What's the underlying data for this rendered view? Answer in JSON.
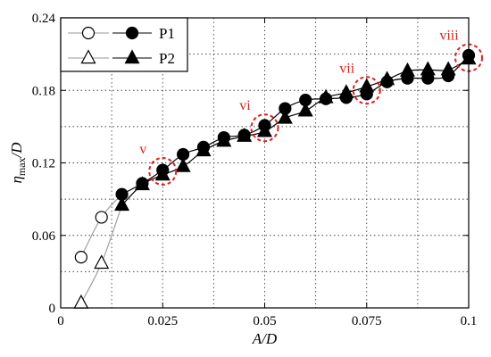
{
  "chart_data": {
    "type": "scatter",
    "title": "",
    "xlabel": "A/D",
    "ylabel_main": "η",
    "ylabel_sub": "max",
    "ylabel_suffix": "/D",
    "xlim": [
      0,
      0.1
    ],
    "ylim": [
      0,
      0.24
    ],
    "x_ticks": [
      0,
      0.025,
      0.05,
      0.075,
      0.1
    ],
    "x_tick_labels": [
      "0",
      "0.025",
      "0.05",
      "0.075",
      "0.1"
    ],
    "y_ticks": [
      0,
      0.06,
      0.12,
      0.18,
      0.24
    ],
    "y_tick_labels": [
      "0",
      "0.06",
      "0.12",
      "0.18",
      "0.24"
    ],
    "grid": "dotted",
    "legend": {
      "placement": "top-left",
      "entries": [
        {
          "marker": "circle-open",
          "label": ""
        },
        {
          "marker": "triangle-open",
          "label": ""
        },
        {
          "marker": "circle-filled",
          "label": "P1"
        },
        {
          "marker": "triangle-filled",
          "label": "P2"
        }
      ]
    },
    "series": [
      {
        "name": "P1",
        "marker": "circle",
        "open_x": [
          0.005,
          0.01
        ],
        "open_y": [
          0.042,
          0.075
        ],
        "filled_x": [
          0.015,
          0.02,
          0.025,
          0.03,
          0.035,
          0.04,
          0.045,
          0.05,
          0.055,
          0.06,
          0.065,
          0.07,
          0.075,
          0.08,
          0.085,
          0.09,
          0.095,
          0.1
        ],
        "filled_y": [
          0.094,
          0.103,
          0.114,
          0.127,
          0.133,
          0.141,
          0.143,
          0.151,
          0.165,
          0.172,
          0.173,
          0.174,
          0.177,
          0.187,
          0.19,
          0.19,
          0.192,
          0.209
        ]
      },
      {
        "name": "P2",
        "marker": "triangle",
        "open_x": [
          0.005,
          0.01
        ],
        "open_y": [
          0.004,
          0.037
        ],
        "filled_x": [
          0.015,
          0.02,
          0.025,
          0.03,
          0.035,
          0.04,
          0.045,
          0.05,
          0.055,
          0.06,
          0.065,
          0.07,
          0.075,
          0.08,
          0.085,
          0.09,
          0.095,
          0.1
        ],
        "filled_y": [
          0.085,
          0.102,
          0.11,
          0.117,
          0.13,
          0.138,
          0.142,
          0.146,
          0.157,
          0.163,
          0.174,
          0.178,
          0.183,
          0.189,
          0.196,
          0.197,
          0.197,
          0.206
        ]
      }
    ],
    "annotations": [
      {
        "label": "v",
        "x": 0.025,
        "y": 0.113
      },
      {
        "label": "vi",
        "x": 0.05,
        "y": 0.149
      },
      {
        "label": "vii",
        "x": 0.075,
        "y": 0.18
      },
      {
        "label": "viii",
        "x": 0.1,
        "y": 0.207
      }
    ],
    "colors": {
      "axis": "#000000",
      "grid": "#444444",
      "annotation": "#e0201c",
      "fit_line_dark": "#000000",
      "fit_line_light": "#999999"
    }
  }
}
